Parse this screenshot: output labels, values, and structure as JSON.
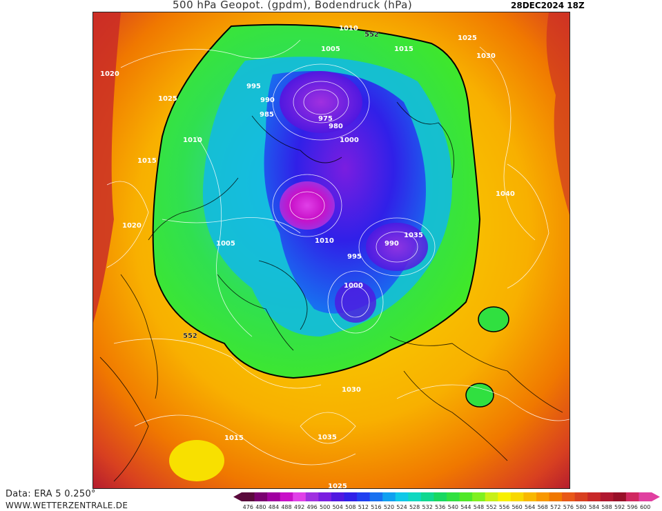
{
  "header": {
    "title": "500 hPa Geopot. (gpdm), Bodendruck (hPa)",
    "date": "28DEC2024 18Z"
  },
  "footer": {
    "source": "Data: ERA 5 0.250°",
    "website": "WWW.WETTERZENTRALE.DE"
  },
  "legend": {
    "ticks": [
      "476",
      "480",
      "484",
      "488",
      "492",
      "496",
      "500",
      "504",
      "508",
      "512",
      "516",
      "520",
      "524",
      "528",
      "532",
      "536",
      "540",
      "544",
      "548",
      "552",
      "556",
      "560",
      "564",
      "568",
      "572",
      "576",
      "580",
      "584",
      "588",
      "592",
      "596",
      "600"
    ],
    "colors": [
      "#5a0a3c",
      "#7a0070",
      "#a000a0",
      "#c810c8",
      "#e040e8",
      "#a030e0",
      "#7a1ee0",
      "#5018e0",
      "#3020e8",
      "#2040f0",
      "#1870f0",
      "#10a0f0",
      "#10c8e8",
      "#10d8c0",
      "#10d890",
      "#18d860",
      "#30e040",
      "#50e828",
      "#80f020",
      "#c8f018",
      "#f8f000",
      "#f8d800",
      "#f8b800",
      "#f89800",
      "#f07800",
      "#e85818",
      "#d84020",
      "#c82828",
      "#b01830",
      "#981028",
      "#d02860",
      "#e040a0"
    ]
  },
  "map": {
    "contour_line_color": "#ffffff",
    "highlight_contour_color": "#000000",
    "highlight_contour_label": "552",
    "pressure_labels": [
      "1010",
      "552",
      "1025",
      "1005",
      "1015",
      "1030",
      "1020",
      "995",
      "990",
      "975",
      "985",
      "980",
      "1000",
      "1035",
      "1040",
      "1025",
      "1010",
      "1015",
      "1005",
      "1020",
      "990",
      "995",
      "1000",
      "1010",
      "552",
      "1015",
      "1030",
      "1035",
      "1025"
    ]
  }
}
